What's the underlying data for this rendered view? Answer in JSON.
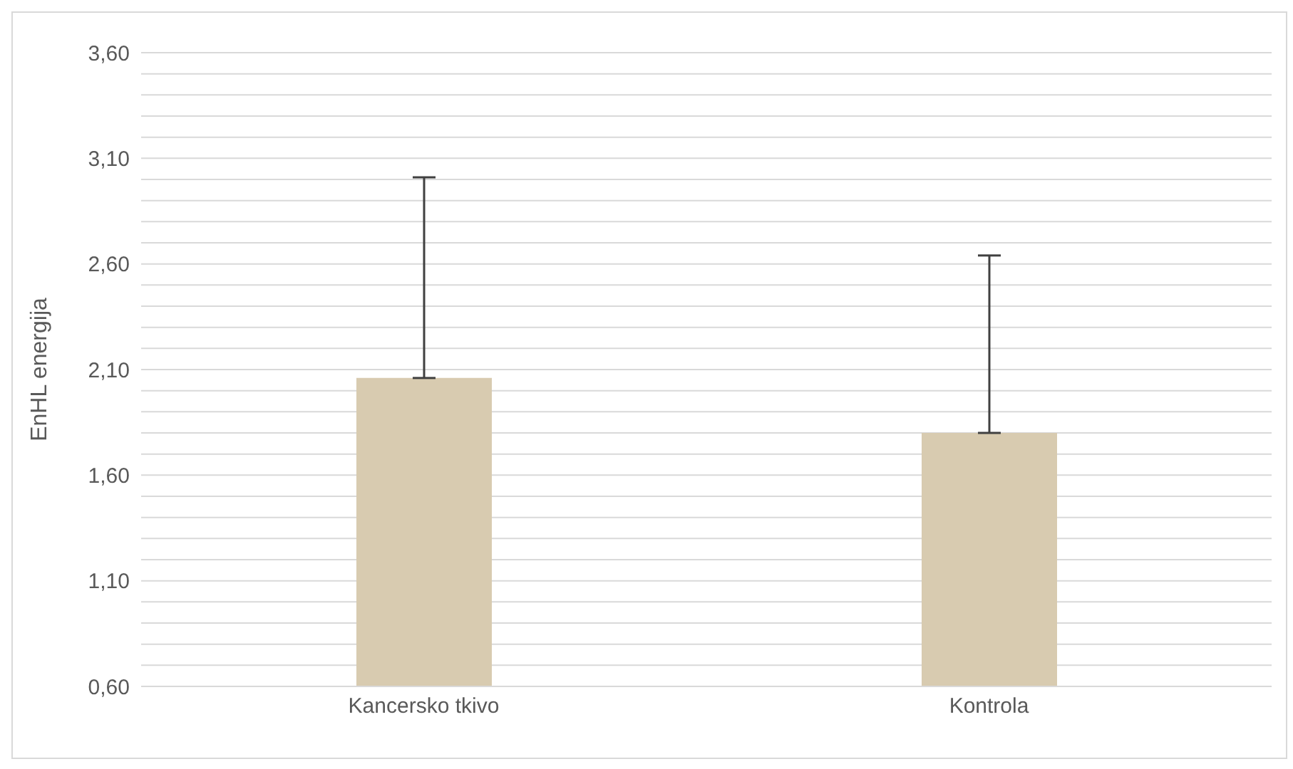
{
  "chart_data": {
    "type": "bar",
    "ylabel": "EnHL energija",
    "categories": [
      "Kancersko tkivo",
      "Kontrola"
    ],
    "values": [
      2.06,
      1.8
    ],
    "color": "#d8cbb0",
    "errors": [
      [
        2.06,
        3.01
      ],
      [
        1.8,
        2.64
      ]
    ],
    "ylim": [
      0.6,
      3.6
    ],
    "yticks": [
      {
        "value": 0.6,
        "label": "0,60"
      },
      {
        "value": 0.7,
        "label": null
      },
      {
        "value": 0.8,
        "label": null
      },
      {
        "value": 0.9,
        "label": null
      },
      {
        "value": 1.0,
        "label": null
      },
      {
        "value": 1.1,
        "label": "1,10"
      },
      {
        "value": 1.2,
        "label": null
      },
      {
        "value": 1.3,
        "label": null
      },
      {
        "value": 1.4,
        "label": null
      },
      {
        "value": 1.5,
        "label": null
      },
      {
        "value": 1.6,
        "label": "1,60"
      },
      {
        "value": 1.7,
        "label": null
      },
      {
        "value": 1.8,
        "label": null
      },
      {
        "value": 1.9,
        "label": null
      },
      {
        "value": 2.0,
        "label": null
      },
      {
        "value": 2.1,
        "label": "2,10"
      },
      {
        "value": 2.2,
        "label": null
      },
      {
        "value": 2.3,
        "label": null
      },
      {
        "value": 2.4,
        "label": null
      },
      {
        "value": 2.5,
        "label": null
      },
      {
        "value": 2.6,
        "label": "2,60"
      },
      {
        "value": 2.7,
        "label": null
      },
      {
        "value": 2.8,
        "label": null
      },
      {
        "value": 2.9,
        "label": null
      },
      {
        "value": 3.0,
        "label": null
      },
      {
        "value": 3.1,
        "label": "3,10"
      },
      {
        "value": 3.2,
        "label": null
      },
      {
        "value": 3.3,
        "label": null
      },
      {
        "value": 3.4,
        "label": null
      },
      {
        "value": 3.5,
        "label": null
      },
      {
        "value": 3.6,
        "label": "3,60"
      }
    ],
    "grid": "y"
  }
}
